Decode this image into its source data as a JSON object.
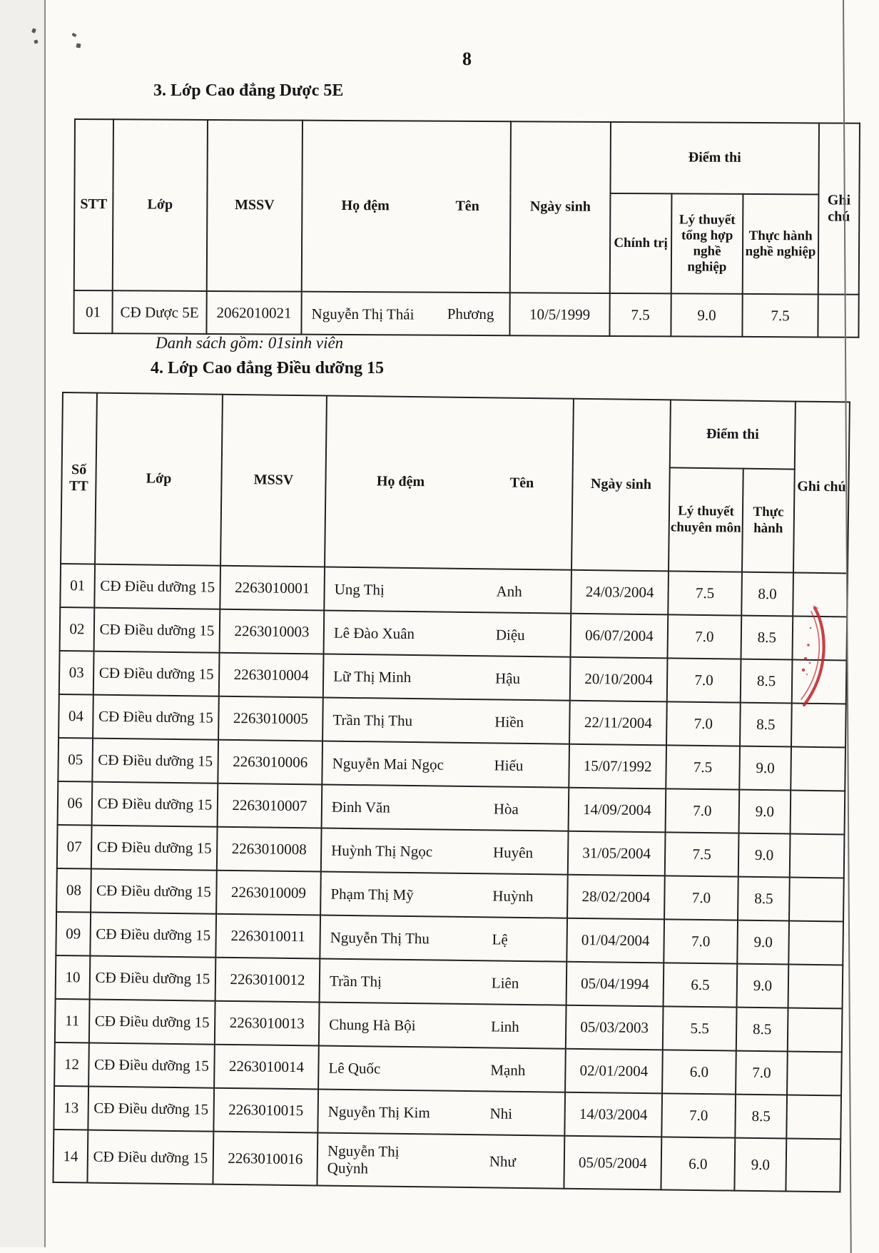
{
  "page": {
    "number": "8"
  },
  "colors": {
    "ink": "#222222",
    "stamp_red": "#c2262e",
    "paper": "#fbfaf7"
  },
  "section3": {
    "title": "3. Lớp Cao đẳng Dược 5E",
    "note": "Danh sách gồm: 01sinh viên",
    "header": {
      "stt": "STT",
      "lop": "Lớp",
      "mssv": "MSSV",
      "ho_dem": "Họ đệm",
      "ten": "Tên",
      "ngay_sinh": "Ngày sinh",
      "diem_thi": "Điểm thi",
      "chinh_tri": "Chính trị",
      "ly_thuyet": "Lý thuyết tổng hợp nghề nghiệp",
      "thuc_hanh": "Thực hành nghề nghiệp",
      "ghi_chu": "Ghi chú"
    },
    "rows": [
      {
        "stt": "01",
        "lop": "CĐ Dược 5E",
        "mssv": "2062010021",
        "ho_dem": "Nguyễn Thị Thái",
        "ten": "Phương",
        "ngay_sinh": "10/5/1999",
        "chinh_tri": "7.5",
        "ly_thuyet": "9.0",
        "thuc_hanh": "7.5",
        "ghi_chu": ""
      }
    ]
  },
  "section4": {
    "title": "4. Lớp Cao đẳng Điều dưỡng 15",
    "header": {
      "so_tt": "Số TT",
      "lop": "Lớp",
      "mssv": "MSSV",
      "ho_dem": "Họ đệm",
      "ten": "Tên",
      "ngay_sinh": "Ngày sinh",
      "diem_thi": "Điểm thi",
      "ly_thuyet": "Lý thuyết chuyên môn",
      "thuc_hanh": "Thực hành",
      "ghi_chu": "Ghi chú"
    },
    "rows": [
      {
        "so_tt": "01",
        "lop": "CĐ Điều dưỡng 15",
        "mssv": "2263010001",
        "ho_dem": "Ung Thị",
        "ten": "Anh",
        "ngay_sinh": "24/03/2004",
        "ly_thuyet": "7.5",
        "thuc_hanh": "8.0",
        "ghi_chu": ""
      },
      {
        "so_tt": "02",
        "lop": "CĐ Điều dưỡng 15",
        "mssv": "2263010003",
        "ho_dem": "Lê Đào Xuân",
        "ten": "Diệu",
        "ngay_sinh": "06/07/2004",
        "ly_thuyet": "7.0",
        "thuc_hanh": "8.5",
        "ghi_chu": ""
      },
      {
        "so_tt": "03",
        "lop": "CĐ Điều dưỡng 15",
        "mssv": "2263010004",
        "ho_dem": "Lữ Thị Minh",
        "ten": "Hậu",
        "ngay_sinh": "20/10/2004",
        "ly_thuyet": "7.0",
        "thuc_hanh": "8.5",
        "ghi_chu": ""
      },
      {
        "so_tt": "04",
        "lop": "CĐ Điều dưỡng 15",
        "mssv": "2263010005",
        "ho_dem": "Trần Thị Thu",
        "ten": "Hiền",
        "ngay_sinh": "22/11/2004",
        "ly_thuyet": "7.0",
        "thuc_hanh": "8.5",
        "ghi_chu": ""
      },
      {
        "so_tt": "05",
        "lop": "CĐ Điều dưỡng 15",
        "mssv": "2263010006",
        "ho_dem": "Nguyễn Mai Ngọc",
        "ten": "Hiếu",
        "ngay_sinh": "15/07/1992",
        "ly_thuyet": "7.5",
        "thuc_hanh": "9.0",
        "ghi_chu": ""
      },
      {
        "so_tt": "06",
        "lop": "CĐ Điều dưỡng 15",
        "mssv": "2263010007",
        "ho_dem": "Đinh Văn",
        "ten": "Hòa",
        "ngay_sinh": "14/09/2004",
        "ly_thuyet": "7.0",
        "thuc_hanh": "9.0",
        "ghi_chu": ""
      },
      {
        "so_tt": "07",
        "lop": "CĐ Điều dưỡng 15",
        "mssv": "2263010008",
        "ho_dem": "Huỳnh Thị Ngọc",
        "ten": "Huyên",
        "ngay_sinh": "31/05/2004",
        "ly_thuyet": "7.5",
        "thuc_hanh": "9.0",
        "ghi_chu": ""
      },
      {
        "so_tt": "08",
        "lop": "CĐ Điều dưỡng 15",
        "mssv": "2263010009",
        "ho_dem": "Phạm Thị Mỹ",
        "ten": "Huỳnh",
        "ngay_sinh": "28/02/2004",
        "ly_thuyet": "7.0",
        "thuc_hanh": "8.5",
        "ghi_chu": ""
      },
      {
        "so_tt": "09",
        "lop": "CĐ Điều dưỡng 15",
        "mssv": "2263010011",
        "ho_dem": "Nguyễn Thị Thu",
        "ten": "Lệ",
        "ngay_sinh": "01/04/2004",
        "ly_thuyet": "7.0",
        "thuc_hanh": "9.0",
        "ghi_chu": ""
      },
      {
        "so_tt": "10",
        "lop": "CĐ Điều dưỡng 15",
        "mssv": "2263010012",
        "ho_dem": "Trần Thị",
        "ten": "Liên",
        "ngay_sinh": "05/04/1994",
        "ly_thuyet": "6.5",
        "thuc_hanh": "9.0",
        "ghi_chu": ""
      },
      {
        "so_tt": "11",
        "lop": "CĐ Điều dưỡng 15",
        "mssv": "2263010013",
        "ho_dem": "Chung Hà Bội",
        "ten": "Linh",
        "ngay_sinh": "05/03/2003",
        "ly_thuyet": "5.5",
        "thuc_hanh": "8.5",
        "ghi_chu": ""
      },
      {
        "so_tt": "12",
        "lop": "CĐ Điều dưỡng 15",
        "mssv": "2263010014",
        "ho_dem": "Lê Quốc",
        "ten": "Mạnh",
        "ngay_sinh": "02/01/2004",
        "ly_thuyet": "6.0",
        "thuc_hanh": "7.0",
        "ghi_chu": ""
      },
      {
        "so_tt": "13",
        "lop": "CĐ Điều dưỡng 15",
        "mssv": "2263010015",
        "ho_dem": "Nguyễn Thị Kim",
        "ten": "Nhi",
        "ngay_sinh": "14/03/2004",
        "ly_thuyet": "7.0",
        "thuc_hanh": "8.5",
        "ghi_chu": ""
      },
      {
        "so_tt": "14",
        "lop": "CĐ Điều dưỡng 15",
        "mssv": "2263010016",
        "ho_dem": "Nguyễn Thị\nQuỳnh",
        "ten": "Như",
        "ngay_sinh": "05/05/2004",
        "ly_thuyet": "6.0",
        "thuc_hanh": "9.0",
        "ghi_chu": ""
      }
    ]
  }
}
